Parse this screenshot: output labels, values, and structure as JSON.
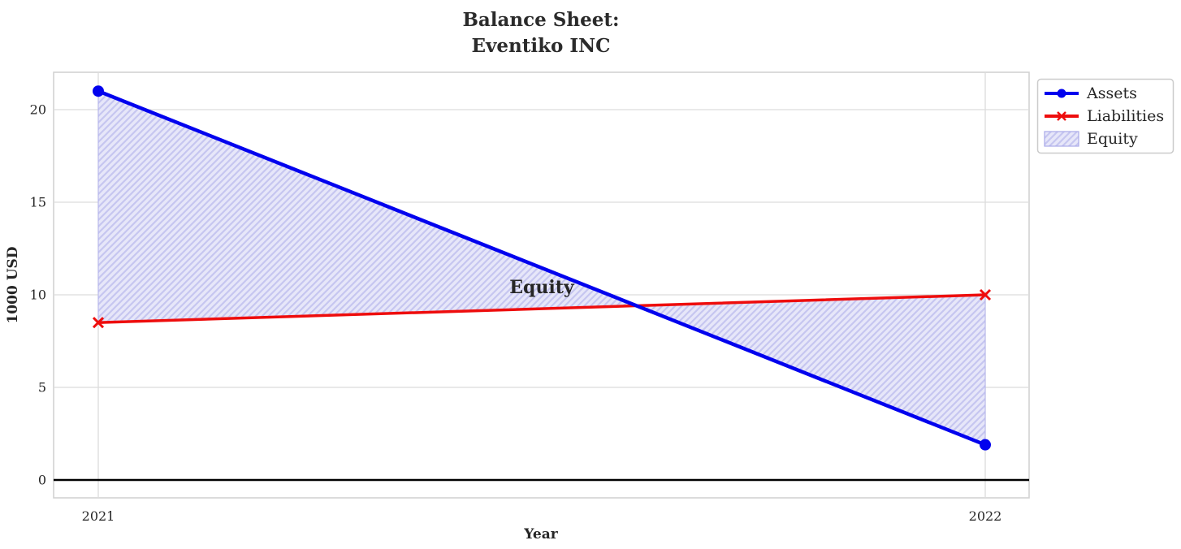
{
  "title": {
    "line1": "Balance Sheet:",
    "line2": "Eventiko INC"
  },
  "chart_data": {
    "type": "line",
    "title": "Balance Sheet:\nEventiko INC",
    "xlabel": "Year",
    "ylabel": "1000 USD",
    "x": [
      "2021",
      "2022"
    ],
    "yticks": [
      0,
      5,
      10,
      15,
      20
    ],
    "ylim": [
      -1,
      22
    ],
    "grid": true,
    "zero_line_y": 0,
    "series": [
      {
        "name": "Assets",
        "color": "#0202ee",
        "marker": "circle",
        "values": [
          21,
          1.9
        ]
      },
      {
        "name": "Liabilities",
        "color": "#ee0d0d",
        "marker": "x",
        "values": [
          8.5,
          10
        ]
      }
    ],
    "fill_between": {
      "label": "Equity",
      "between": [
        "Assets",
        "Liabilities"
      ],
      "facecolor": "#e7e7f9",
      "hatch_color": "#c6c6f0",
      "edge_color": "#b2b2ec"
    },
    "annotation": {
      "text": "Equity",
      "x_frac": 0.5,
      "y": 10.4,
      "color": "#0d0dd0"
    },
    "legend": {
      "position": "upper-right-outside",
      "items": [
        "Assets",
        "Liabilities",
        "Equity"
      ]
    }
  }
}
